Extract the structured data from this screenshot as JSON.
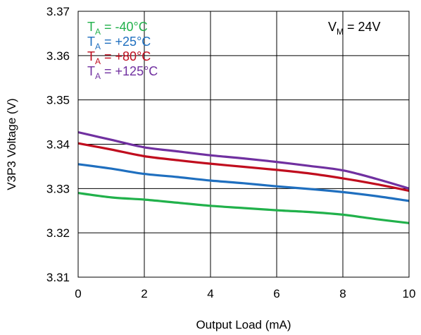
{
  "chart_data": {
    "type": "line",
    "xlabel": "Output Load (mA)",
    "ylabel": "V3P3 Voltage (V)",
    "xlim": [
      0,
      10
    ],
    "ylim": [
      3.31,
      3.37
    ],
    "xticks": [
      "0",
      "2",
      "4",
      "6",
      "8",
      "10"
    ],
    "yticks": [
      "3.37",
      "3.36",
      "3.35",
      "3.34",
      "3.33",
      "3.32",
      "3.31"
    ],
    "grid": true,
    "legend_position": "top-left",
    "annotation": {
      "main": "V",
      "sub": "M",
      "rest": " = 24V"
    },
    "series": [
      {
        "name": "TA = -40°C",
        "label_main": "T",
        "label_sub": "A",
        "label_rest": " = -40°C",
        "color": "#21b14b",
        "x": [
          0,
          1,
          2,
          3,
          4,
          5,
          6,
          7,
          8,
          9,
          10
        ],
        "y": [
          3.329,
          3.328,
          3.3275,
          3.3268,
          3.3261,
          3.3256,
          3.3251,
          3.3247,
          3.3241,
          3.3231,
          3.3222
        ]
      },
      {
        "name": "TA = +25°C",
        "label_main": "T",
        "label_sub": "A",
        "label_rest": " = +25°C",
        "color": "#1f6fbf",
        "x": [
          0,
          1,
          2,
          3,
          4,
          5,
          6,
          7,
          8,
          9,
          10
        ],
        "y": [
          3.3355,
          3.3345,
          3.3333,
          3.3326,
          3.3318,
          3.3312,
          3.3305,
          3.3299,
          3.3292,
          3.3283,
          3.3272
        ]
      },
      {
        "name": "TA = +80°C",
        "label_main": "T",
        "label_sub": "A",
        "label_rest": " = +80°C",
        "color": "#c00d1e",
        "x": [
          0,
          1,
          2,
          3,
          4,
          5,
          6,
          7,
          8,
          9,
          10
        ],
        "y": [
          3.3402,
          3.3388,
          3.3373,
          3.3364,
          3.3356,
          3.3349,
          3.3342,
          3.3334,
          3.3323,
          3.331,
          3.3295
        ]
      },
      {
        "name": "TA = +125°C",
        "label_main": "T",
        "label_sub": "A",
        "label_rest": " = +125°C",
        "color": "#7030a0",
        "x": [
          0,
          1,
          2,
          3,
          4,
          5,
          6,
          7,
          8,
          9,
          10
        ],
        "y": [
          3.3427,
          3.341,
          3.3393,
          3.3384,
          3.3375,
          3.3368,
          3.336,
          3.3351,
          3.3341,
          3.3322,
          3.33
        ]
      }
    ]
  }
}
